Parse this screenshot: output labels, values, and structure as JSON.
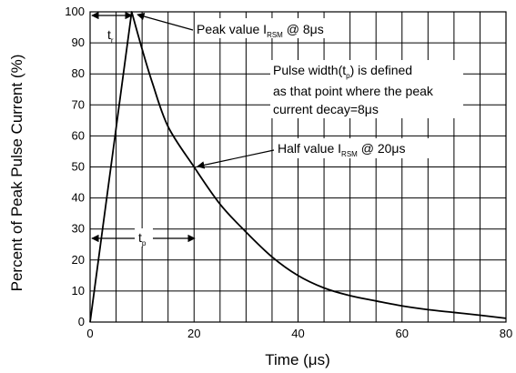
{
  "chart_data": {
    "type": "line",
    "title": "",
    "xlabel": "Time (μs)",
    "ylabel": "Percent of Peak Pulse Current (%)",
    "xlim": [
      0,
      80
    ],
    "ylim": [
      0,
      100
    ],
    "x_ticks": [
      0,
      20,
      40,
      60,
      80
    ],
    "y_ticks": [
      0,
      10,
      20,
      30,
      40,
      50,
      60,
      70,
      80,
      90,
      100
    ],
    "grid": true,
    "series": [
      {
        "x": [
          0,
          8,
          10,
          12,
          15,
          20,
          25,
          30,
          35,
          40,
          45,
          50,
          55,
          60,
          65,
          70,
          75,
          80
        ],
        "y": [
          0,
          100,
          88,
          77,
          63,
          50,
          38,
          29,
          21,
          15,
          11,
          8.5,
          6.8,
          5.2,
          4,
          3.1,
          2.2,
          1.2
        ]
      }
    ],
    "annotations": {
      "tr_label": {
        "main": "t",
        "sub": "r"
      },
      "tp_label": {
        "main": "t",
        "sub": "p"
      },
      "peak": {
        "prefix": "Peak value I",
        "sub": "RSM",
        "suffix": " @ 8μs"
      },
      "pulse_width": {
        "line1_prefix": "Pulse width(t",
        "line1_sub": "p",
        "line1_suffix": ") is defined",
        "line2": "as that point where the peak",
        "line3": "current decay=8μs"
      },
      "half": {
        "prefix": "Half  value I",
        "sub": "RSM",
        "suffix": " @ 20μs"
      }
    }
  }
}
